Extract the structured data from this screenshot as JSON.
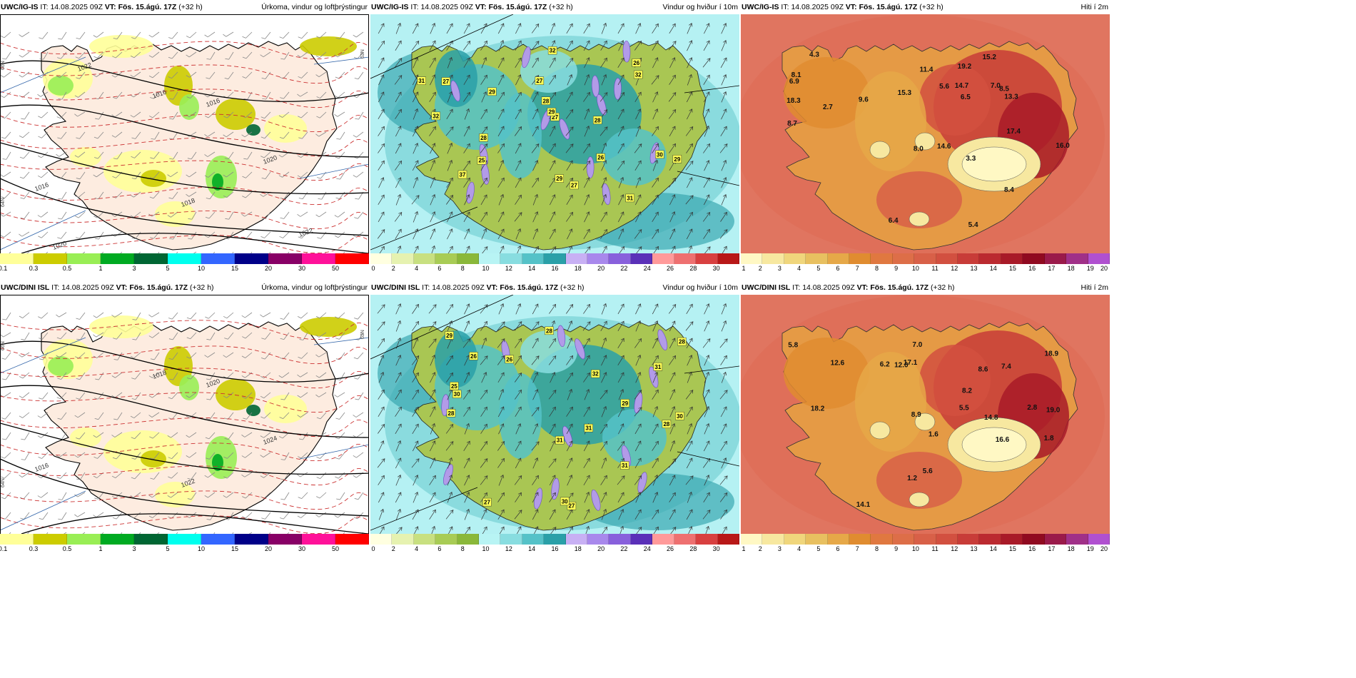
{
  "panels": [
    {
      "id": "p0",
      "model": "UWC/IG-IS",
      "it_label": "IT:",
      "it": "14.08.2025 09Z",
      "vt_label": "VT:",
      "vt": "Fös. 15.ágú. 17Z",
      "lead": "(+32 h)",
      "title": "Úrkoma, vindur og loftþrýstingur",
      "type": "precip",
      "scale": "precip",
      "values": [],
      "isobars": [
        "1016",
        "1016",
        "1016",
        "1018",
        "1020",
        "1020",
        "1022",
        "1022"
      ],
      "edge_labels": [
        "66N",
        "64N",
        "63N"
      ]
    },
    {
      "id": "p1",
      "model": "UWC/IG-IS",
      "it_label": "IT:",
      "it": "14.08.2025 09Z",
      "vt_label": "VT:",
      "vt": "Fös. 15.ágú. 17Z",
      "lead": "(+32 h)",
      "title": "Vindur og hviður í 10m",
      "type": "wind",
      "scale": "wind",
      "values": [
        "31",
        "32",
        "28",
        "28",
        "29",
        "32",
        "27",
        "29",
        "27",
        "27",
        "30",
        "28",
        "26",
        "31",
        "32",
        "27",
        "25",
        "29",
        "37",
        "26",
        "29"
      ],
      "isobars": [],
      "edge_labels": []
    },
    {
      "id": "p2",
      "model": "UWC/IG-IS",
      "it_label": "IT:",
      "it": "14.08.2025 09Z",
      "vt_label": "VT:",
      "vt": "Fös. 15.ágú. 17Z",
      "lead": "(+32 h)",
      "title": "Hiti í 2m",
      "type": "temp",
      "scale": "temp",
      "values": [
        "8.7",
        "8.5",
        "8.1",
        "14.7",
        "11.4",
        "15.2",
        "15.3",
        "6.9",
        "5.4",
        "14.6",
        "13.3",
        "19.2",
        "17.4",
        "5.6",
        "7.0",
        "6.4",
        "3.3",
        "2.7",
        "16.0",
        "18.3",
        "6.5",
        "8.0",
        "9.6",
        "4.3",
        "8.4"
      ],
      "isobars": [],
      "edge_labels": []
    },
    {
      "id": "p3",
      "model": "UWC/DINI ISL",
      "it_label": "IT:",
      "it": "14.08.2025 09Z",
      "vt_label": "VT:",
      "vt": "Fös. 15.ágú. 17Z",
      "lead": "(+32 h)",
      "title": "Úrkoma, vindur og loftþrýstingur",
      "type": "precip",
      "scale": "precip",
      "values": [],
      "isobars": [
        "1016",
        "1018",
        "1020",
        "1022",
        "1024"
      ],
      "edge_labels": [
        "66N",
        "64N",
        "63N"
      ]
    },
    {
      "id": "p4",
      "model": "UWC/DINI ISL",
      "it_label": "IT:",
      "it": "14.08.2025 09Z",
      "vt_label": "VT:",
      "vt": "Fös. 15.ágú. 17Z",
      "lead": "(+32 h)",
      "title": "Vindur og hviður í 10m",
      "type": "wind",
      "scale": "wind",
      "values": [
        "29",
        "31",
        "28",
        "28",
        "26",
        "25",
        "31",
        "28",
        "30",
        "29",
        "26",
        "27",
        "27",
        "30",
        "31",
        "28",
        "32",
        "31",
        "30"
      ],
      "isobars": [],
      "edge_labels": []
    },
    {
      "id": "p5",
      "model": "UWC/DINI ISL",
      "it_label": "IT:",
      "it": "14.08.2025 09Z",
      "vt_label": "VT:",
      "vt": "Fös. 15.ágú. 17Z",
      "lead": "(+32 h)",
      "title": "Hiti í 2m",
      "type": "temp",
      "scale": "temp",
      "values": [
        "5.8",
        "14.8",
        "12.0",
        "8.9",
        "17.1",
        "18.9",
        "7.4",
        "6.2",
        "5.5",
        "14.1",
        "12.6",
        "19.0",
        "5.6",
        "1.6",
        "1.8",
        "16.6",
        "7.0",
        "18.2",
        "8.2",
        "2.8",
        "8.6",
        "1.2"
      ],
      "isobars": [],
      "edge_labels": []
    }
  ],
  "scales": {
    "precip": {
      "colors": [
        "#ffff99",
        "#cccc00",
        "#99ee55",
        "#00aa22",
        "#006633",
        "#00ffee",
        "#3366ff",
        "#000088",
        "#880066",
        "#ff1199",
        "#ff0000"
      ],
      "ticks": [
        "0.1",
        "0.3",
        "0.5",
        "1",
        "3",
        "5",
        "10",
        "15",
        "20",
        "30",
        "50"
      ]
    },
    "wind": {
      "colors": [
        "#ffffe0",
        "#e6f2b0",
        "#c8e080",
        "#a8cc55",
        "#8ab83a",
        "#b8f4f4",
        "#88dde0",
        "#55c2c8",
        "#2aa0a8",
        "#c8b0f4",
        "#a888ec",
        "#8860dc",
        "#5a30b8",
        "#ff9a9a",
        "#ee7070",
        "#d84040",
        "#b81818"
      ],
      "ticks": [
        "0",
        "2",
        "4",
        "6",
        "8",
        "10",
        "12",
        "14",
        "16",
        "18",
        "20",
        "22",
        "24",
        "26",
        "28",
        "30"
      ]
    },
    "temp": {
      "colors": [
        "#fff8c4",
        "#f7e8a0",
        "#f0d67c",
        "#e8c060",
        "#e6a848",
        "#e08c30",
        "#e07840",
        "#dd6e48",
        "#d86048",
        "#d25040",
        "#c83c38",
        "#bb2a30",
        "#a81a28",
        "#900a20",
        "#9a1a4a",
        "#a03088",
        "#b050d0"
      ],
      "ticks": [
        "1",
        "2",
        "3",
        "4",
        "5",
        "6",
        "7",
        "8",
        "9",
        "10",
        "11",
        "12",
        "13",
        "14",
        "15",
        "16",
        "17",
        "18",
        "19",
        "20"
      ]
    }
  },
  "colors": {
    "ocean_precip": "#ffffff",
    "land_precip": "#fdece0",
    "ocean_wind": "#b5f1f3",
    "land_wind": "#a9c653",
    "ocean_temp": "#e07560",
    "land_temp": "#e59a45"
  }
}
